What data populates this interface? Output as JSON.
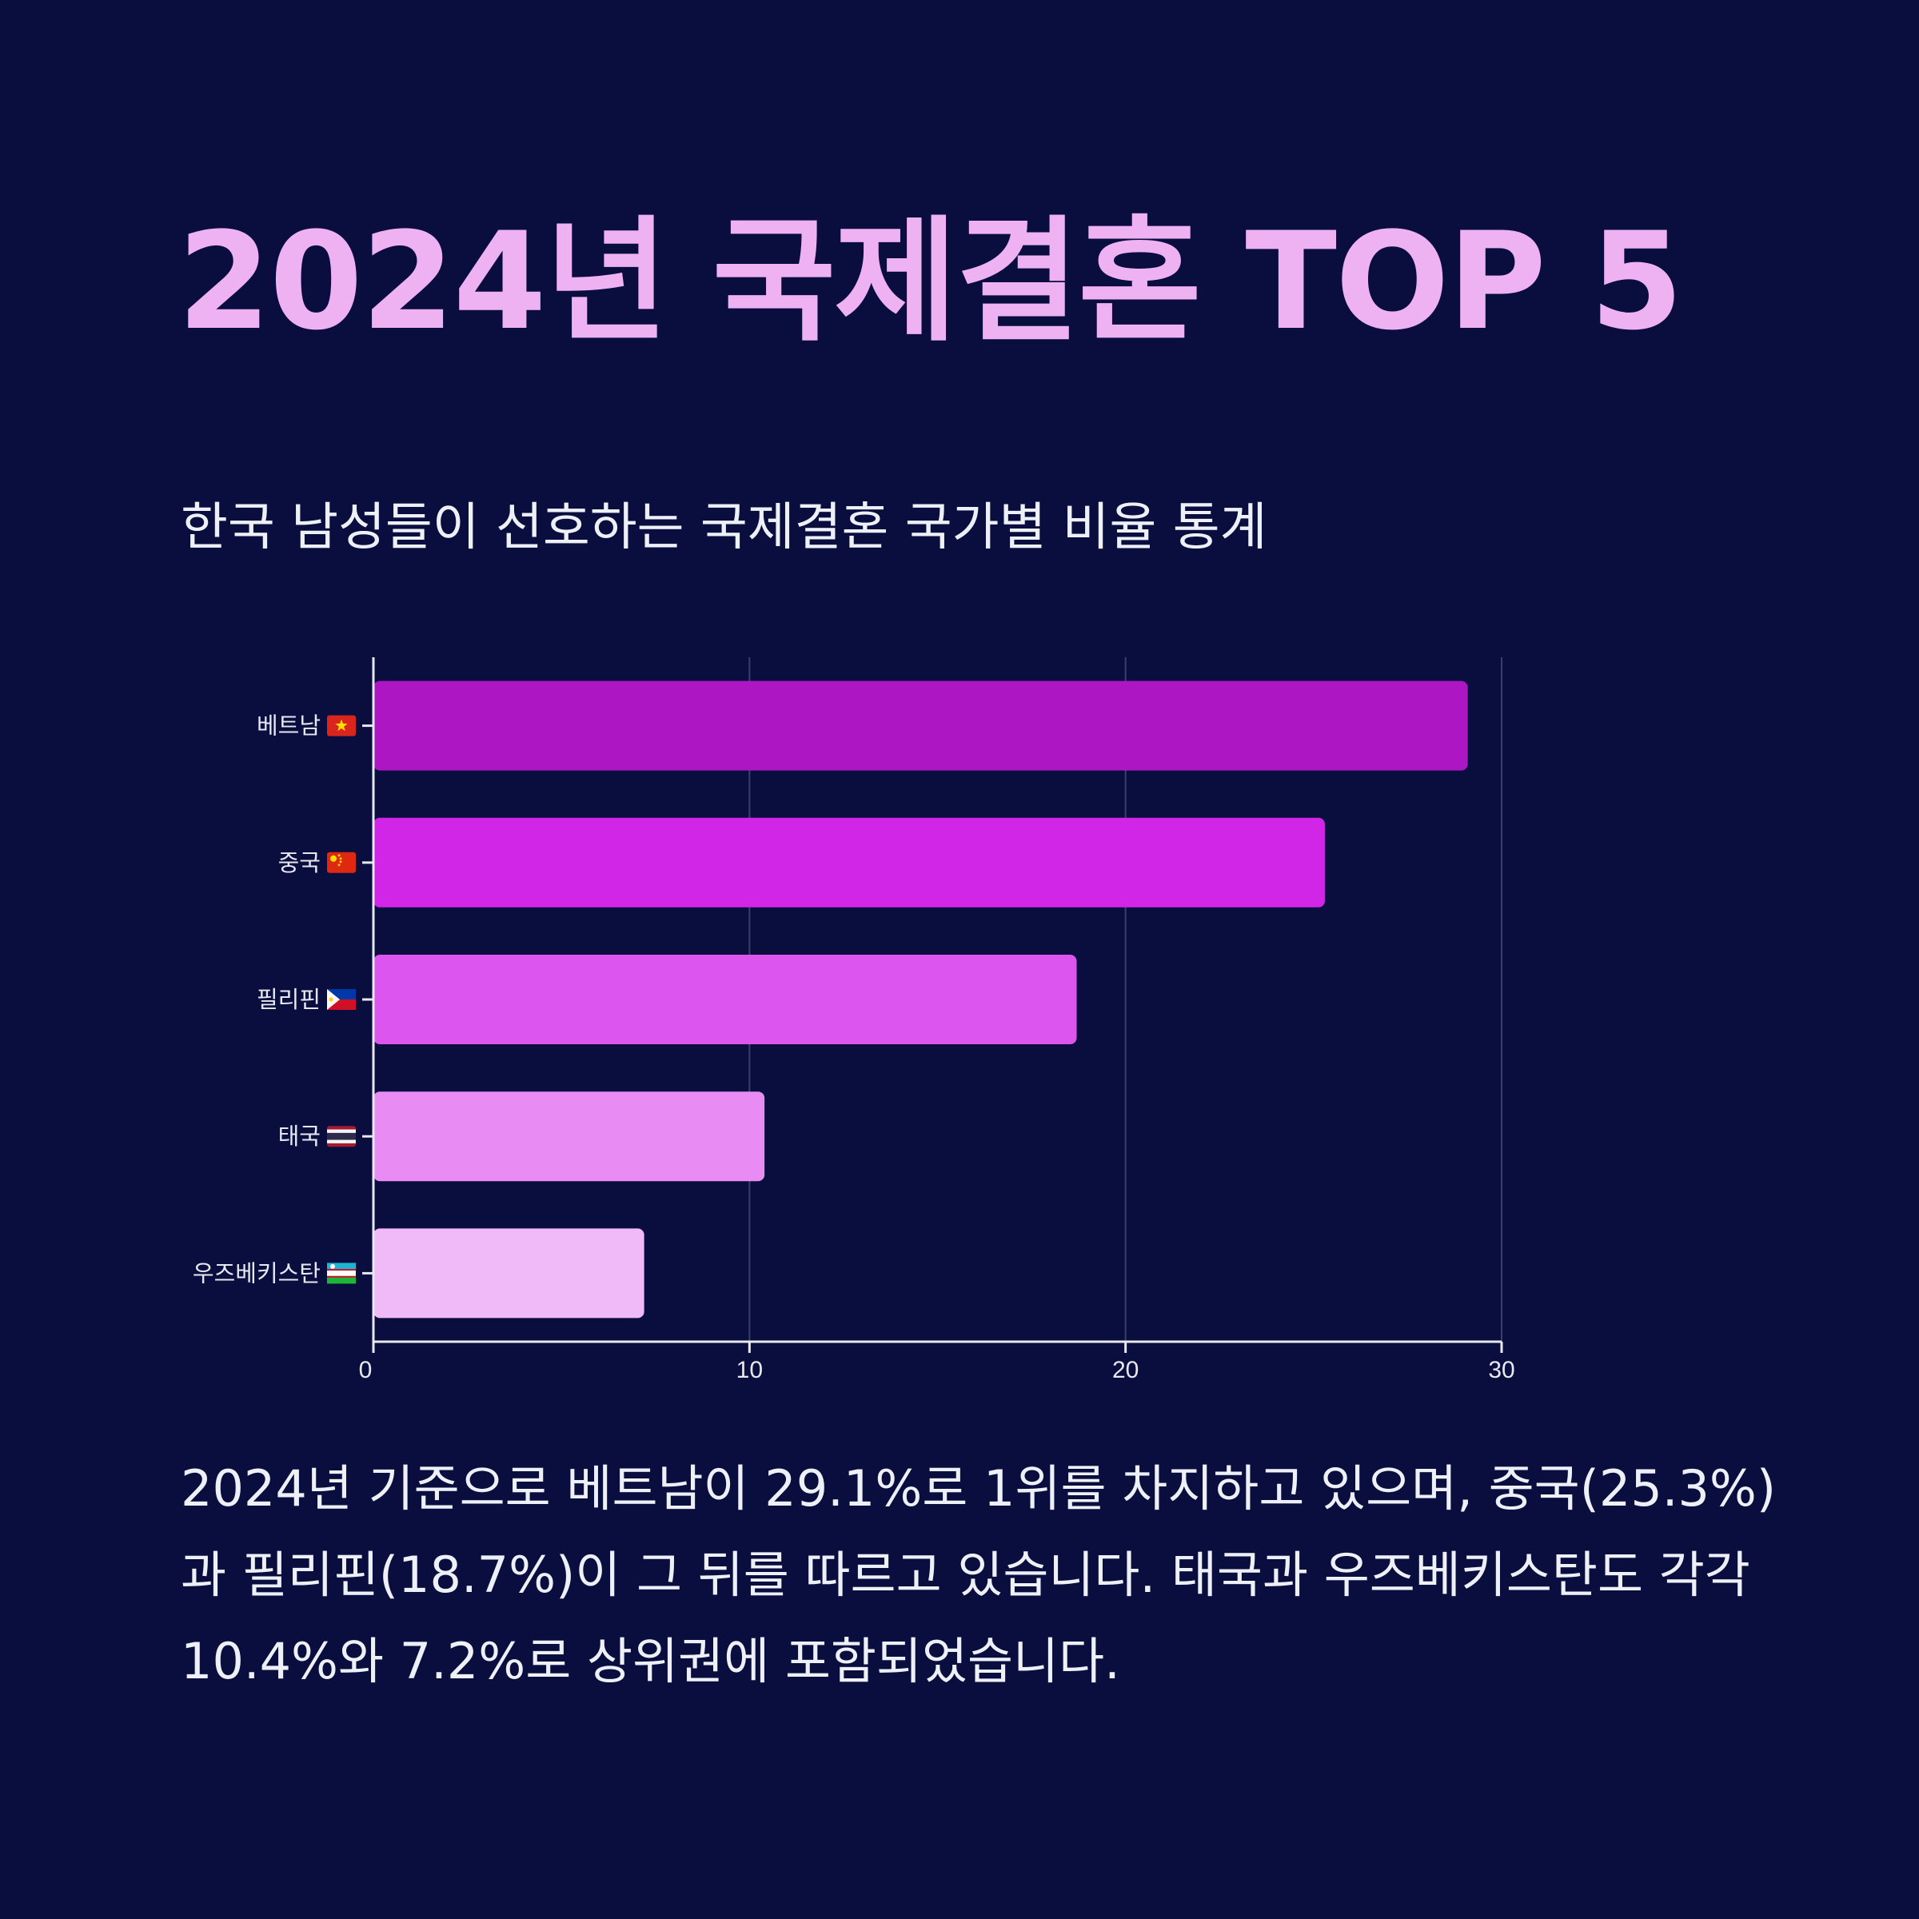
{
  "header": {
    "title": "2024년 국제결혼 TOP 5",
    "subtitle": "한국 남성들이 선호하는 국제결혼 국가별 비율 통계"
  },
  "chart_data": {
    "type": "bar",
    "orientation": "horizontal",
    "categories": [
      "베트남 🇻🇳",
      "중국 🇨🇳",
      "필리핀 🇵🇭",
      "태국 🇹🇭",
      "우즈베키스탄 🇺🇿"
    ],
    "flags": [
      "VN",
      "CN",
      "PH",
      "TH",
      "UZ"
    ],
    "values": [
      29.1,
      25.3,
      18.7,
      10.4,
      7.2
    ],
    "bar_colors": [
      "#ad17c3",
      "#d126e8",
      "#dc55ee",
      "#e88cf4",
      "#f0b9f8"
    ],
    "xlim": [
      0,
      30
    ],
    "xticks": [
      0,
      10,
      20,
      30
    ],
    "grid": true
  },
  "description": "2024년 기준으로 베트남이 29.1%로 1위를 차지하고 있으며, 중국(25.3%)과 필리핀(18.7%)이 그 뒤를 따르고 있습니다. 태국과 우즈베키스탄도 각각 10.4%와 7.2%로 상위권에 포함되었습니다.",
  "colors": {
    "background": "#0a0e3e",
    "title": "#eeb1f2",
    "text": "#eef0f8",
    "axis": "#e8e8f0",
    "grid": "#3a3e68"
  }
}
